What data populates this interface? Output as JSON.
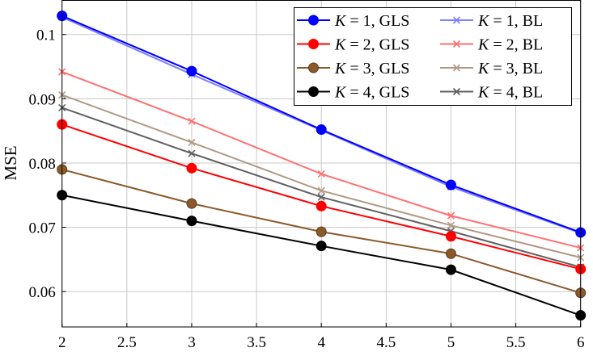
{
  "chart_data": {
    "type": "line",
    "title": "",
    "xlabel": "",
    "ylabel": "MSE",
    "xlim": [
      2,
      6
    ],
    "ylim": [
      0.0545,
      0.1053
    ],
    "grid": true,
    "legend_placement": "top-right",
    "xticks": [
      "2",
      "2.5",
      "3",
      "3.5",
      "4",
      "4.5",
      "5",
      "5.5",
      "6"
    ],
    "yticks": [
      "0.06",
      "0.07",
      "0.08",
      "0.09",
      "0.1"
    ],
    "x": [
      2,
      3,
      4,
      5,
      6
    ],
    "series": [
      {
        "name": "K = 1, GLS",
        "k": "1",
        "method": "GLS",
        "marker": "circle",
        "color": "#0000ff",
        "values": [
          0.1029,
          0.0943,
          0.0852,
          0.0766,
          0.0692
        ]
      },
      {
        "name": "K = 1, BL",
        "k": "1",
        "method": "BL",
        "marker": "x",
        "color": "#7f7fff",
        "values": [
          0.1027,
          0.0938,
          0.0851,
          0.0763,
          0.0691
        ]
      },
      {
        "name": "K = 2, GLS",
        "k": "2",
        "method": "GLS",
        "marker": "circle",
        "color": "#ff0000",
        "values": [
          0.086,
          0.0792,
          0.0733,
          0.0686,
          0.0635
        ]
      },
      {
        "name": "K = 2, BL",
        "k": "2",
        "method": "BL",
        "marker": "x",
        "color": "#ff7070",
        "values": [
          0.0942,
          0.0865,
          0.0783,
          0.0718,
          0.0668
        ]
      },
      {
        "name": "K = 3, GLS",
        "k": "3",
        "method": "GLS",
        "marker": "circle",
        "color": "#8b5a2b",
        "values": [
          0.079,
          0.0737,
          0.0693,
          0.0659,
          0.0598
        ]
      },
      {
        "name": "K = 3, BL",
        "k": "3",
        "method": "BL",
        "marker": "x",
        "color": "#b09a86",
        "values": [
          0.0906,
          0.0832,
          0.0757,
          0.0703,
          0.0653
        ]
      },
      {
        "name": "K = 4, GLS",
        "k": "4",
        "method": "GLS",
        "marker": "circle",
        "color": "#000000",
        "values": [
          0.075,
          0.071,
          0.0671,
          0.0634,
          0.0563
        ]
      },
      {
        "name": "K = 4, BL",
        "k": "4",
        "method": "BL",
        "marker": "x",
        "color": "#606060",
        "values": [
          0.0886,
          0.0815,
          0.0747,
          0.0694,
          0.0638
        ]
      }
    ]
  }
}
